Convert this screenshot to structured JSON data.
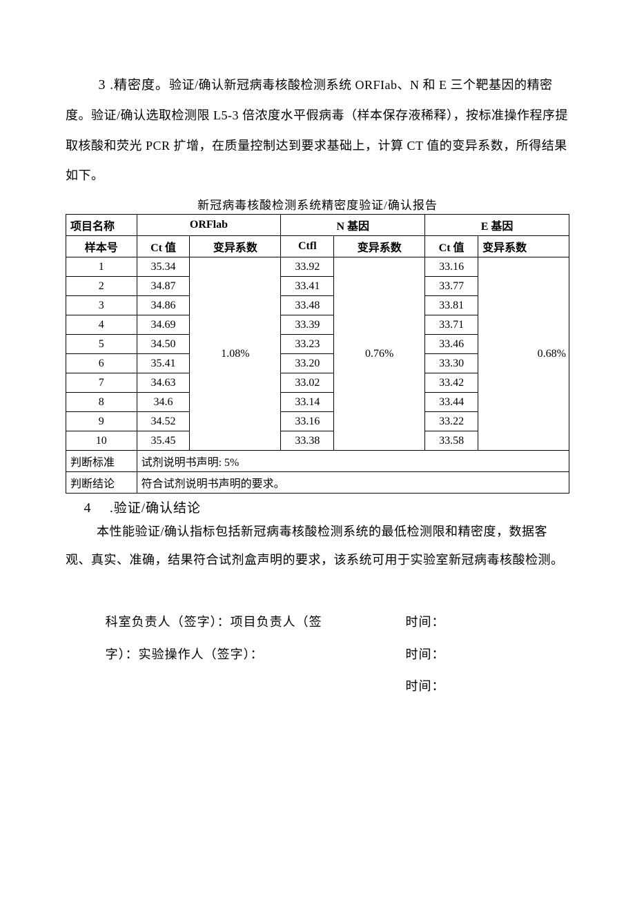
{
  "section3": {
    "number": "3",
    "title": ".精密度。",
    "text_span1": "验证/确认新冠病毒核酸检测系统 ORFIab、N 和 E 三个靶基因的精密度。验证/确认选取检测限 L5-3 倍浓度水平假病毒（样本保存液稀释），按标准操作程序提取核酸和荧光 PCR 扩增，在质量控制达到要求基础上，计算 CT 值的变异系数，所得结果如下。"
  },
  "table": {
    "title": "新冠病毒核酸检测系统精密度验证/确认报告",
    "header_row1_col1": "项目名称",
    "header_row1_col2": "ORFlab",
    "header_row1_col3": "N 基因",
    "header_row1_col4": "E 基因",
    "header_row2_col1": "样本号",
    "header_row2_ct1": "Ct 值",
    "header_row2_cv1": "变异系数",
    "header_row2_ct2": "Ctfl",
    "header_row2_cv2": "变异系数",
    "header_row2_ct3": "Ct 值",
    "header_row2_cv3": "变异系数",
    "rows": [
      {
        "id": "1",
        "orf_ct": "35.34",
        "n_ct": "33.92",
        "e_ct": "33.16"
      },
      {
        "id": "2",
        "orf_ct": "34.87",
        "n_ct": "33.41",
        "e_ct": "33.77"
      },
      {
        "id": "3",
        "orf_ct": "34.86",
        "n_ct": "33.48",
        "e_ct": "33.81"
      },
      {
        "id": "4",
        "orf_ct": "34.69",
        "n_ct": "33.39",
        "e_ct": "33.71"
      },
      {
        "id": "5",
        "orf_ct": "34.50",
        "n_ct": "33.23",
        "e_ct": "33.46"
      },
      {
        "id": "6",
        "orf_ct": "35.41",
        "n_ct": "33.20",
        "e_ct": "33.30"
      },
      {
        "id": "7",
        "orf_ct": "34.63",
        "n_ct": "33.02",
        "e_ct": "33.42"
      },
      {
        "id": "8",
        "orf_ct": "34.6",
        "n_ct": "33.14",
        "e_ct": "33.44"
      },
      {
        "id": "9",
        "orf_ct": "34.52",
        "n_ct": "33.16",
        "e_ct": "33.22"
      },
      {
        "id": "10",
        "orf_ct": "35.45",
        "n_ct": "33.38",
        "e_ct": "33.58"
      }
    ],
    "orf_cv": "1.08%",
    "n_cv": "0.76%",
    "e_cv": "0.68%",
    "criteria_label": "判断标准",
    "criteria_value": "试剂说明书声明: 5%",
    "conclusion_label": "判断结论",
    "conclusion_value": "符合试剂说明书声明的要求。"
  },
  "section4": {
    "number": "4",
    "title": ".验证/确认结论",
    "paragraph": "本性能验证/确认指标包括新冠病毒核酸检测系统的最低检测限和精密度，数据客观、真实、准确，结果符合试剂盒声明的要求，该系统可用于实验室新冠病毒核酸检测。"
  },
  "signatures": {
    "line1_left": "科室负责人（签字）：项目负责人（签",
    "line2_left": "字）：实验操作人（签字）：",
    "time": "时间："
  }
}
